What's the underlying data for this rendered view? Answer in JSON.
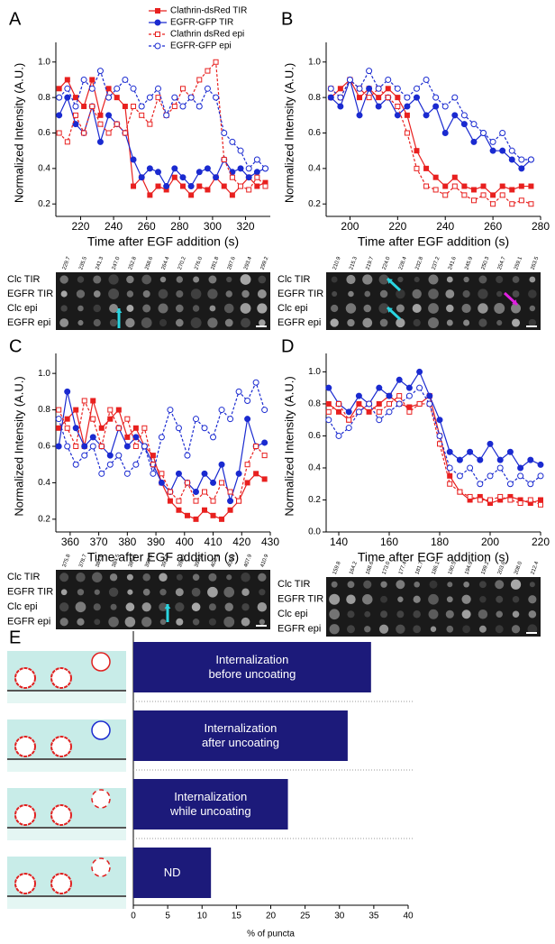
{
  "chart_data": [
    {
      "panel": "A",
      "type": "line",
      "xlabel": "Time after EGF addition (s)",
      "ylabel": "Normalized Intensity (A.U.)",
      "xlim": [
        205,
        335
      ],
      "xticks": [
        220,
        240,
        260,
        280,
        300,
        320
      ],
      "ylim": [
        0.13,
        1.07
      ],
      "yticks": [
        0.2,
        0.4,
        0.6,
        0.8,
        {
          "value": 1,
          "label": "1.0"
        }
      ],
      "legend": "top-right",
      "x": [
        207,
        212,
        217,
        222,
        227,
        232,
        237,
        242,
        247,
        252,
        257,
        262,
        267,
        272,
        277,
        282,
        287,
        292,
        297,
        302,
        307,
        312,
        317,
        322,
        327,
        332
      ],
      "series": [
        {
          "name": "Clathrin-dsRed TIR",
          "color": "#e8201f",
          "marker": "square",
          "filled": true,
          "dashed": false,
          "values": [
            0.85,
            0.9,
            0.8,
            0.75,
            0.9,
            0.7,
            0.85,
            0.8,
            0.75,
            0.3,
            0.35,
            0.25,
            0.3,
            0.28,
            0.35,
            0.3,
            0.25,
            0.3,
            0.28,
            0.35,
            0.3,
            0.25,
            0.3,
            0.35,
            0.3,
            0.32
          ]
        },
        {
          "name": "EGFR-GFP TIR",
          "color": "#1a2ad0",
          "marker": "circle",
          "filled": true,
          "dashed": false,
          "values": [
            0.7,
            0.8,
            0.65,
            0.6,
            0.75,
            0.55,
            0.7,
            0.65,
            0.6,
            0.45,
            0.35,
            0.4,
            0.38,
            0.3,
            0.4,
            0.35,
            0.3,
            0.38,
            0.4,
            0.35,
            0.45,
            0.38,
            0.4,
            0.35,
            0.38,
            0.4
          ]
        },
        {
          "name": "Clathrin dsRed epi",
          "color": "#e8201f",
          "marker": "square",
          "filled": false,
          "dashed": true,
          "values": [
            0.6,
            0.55,
            0.7,
            0.6,
            0.75,
            0.65,
            0.6,
            0.65,
            0.6,
            0.75,
            0.7,
            0.65,
            0.8,
            0.7,
            0.75,
            0.85,
            0.8,
            0.9,
            0.95,
            1.0,
            0.45,
            0.35,
            0.3,
            0.28,
            0.35,
            0.3
          ]
        },
        {
          "name": "EGFR-GFP epi",
          "color": "#1a2ad0",
          "marker": "circle",
          "filled": false,
          "dashed": true,
          "values": [
            0.8,
            0.85,
            0.75,
            0.9,
            0.85,
            0.95,
            0.8,
            0.85,
            0.9,
            0.85,
            0.75,
            0.8,
            0.85,
            0.7,
            0.8,
            0.75,
            0.8,
            0.75,
            0.85,
            0.8,
            0.6,
            0.55,
            0.5,
            0.4,
            0.45,
            0.4
          ]
        }
      ],
      "strip": {
        "rows": [
          "Clc TIR",
          "EGFR TIR",
          "Clc epi",
          "EGFR epi"
        ],
        "times": [
          "229.7",
          "235.5",
          "241.3",
          "247.0",
          "252.8",
          "258.6",
          "264.4",
          "270.2",
          "276.0",
          "281.8",
          "287.6",
          "293.4",
          "299.2"
        ]
      }
    },
    {
      "panel": "B",
      "type": "line",
      "xlabel": "Time after EGF addition (s)",
      "ylabel": "Normalized Intensity (A.U.)",
      "xlim": [
        190,
        280
      ],
      "xticks": [
        200,
        220,
        240,
        260,
        280
      ],
      "ylim": [
        0.13,
        1.07
      ],
      "yticks": [
        0.2,
        0.4,
        0.6,
        0.8,
        {
          "value": 1,
          "label": "1.0"
        }
      ],
      "x": [
        192,
        196,
        200,
        204,
        208,
        212,
        216,
        220,
        224,
        228,
        232,
        236,
        240,
        244,
        248,
        252,
        256,
        260,
        264,
        268,
        272,
        276
      ],
      "series": [
        {
          "color": "#e8201f",
          "marker": "square",
          "filled": true,
          "dashed": false,
          "values": [
            0.8,
            0.85,
            0.9,
            0.8,
            0.85,
            0.8,
            0.85,
            0.8,
            0.7,
            0.5,
            0.4,
            0.35,
            0.3,
            0.35,
            0.3,
            0.28,
            0.3,
            0.25,
            0.3,
            0.28,
            0.3,
            0.3
          ]
        },
        {
          "color": "#1a2ad0",
          "marker": "circle",
          "filled": true,
          "dashed": false,
          "values": [
            0.8,
            0.75,
            0.9,
            0.7,
            0.85,
            0.75,
            0.8,
            0.7,
            0.75,
            0.8,
            0.7,
            0.75,
            0.6,
            0.7,
            0.65,
            0.55,
            0.6,
            0.5,
            0.5,
            0.45,
            0.4,
            0.45
          ]
        },
        {
          "color": "#e8201f",
          "marker": "square",
          "filled": false,
          "dashed": true,
          "values": [
            0.85,
            0.8,
            0.9,
            0.85,
            0.8,
            0.85,
            0.8,
            0.75,
            0.6,
            0.4,
            0.3,
            0.28,
            0.25,
            0.3,
            0.25,
            0.22,
            0.25,
            0.2,
            0.25,
            0.2,
            0.22,
            0.2
          ]
        },
        {
          "color": "#1a2ad0",
          "marker": "circle",
          "filled": false,
          "dashed": true,
          "values": [
            0.85,
            0.8,
            0.9,
            0.85,
            0.95,
            0.85,
            0.9,
            0.85,
            0.8,
            0.85,
            0.9,
            0.8,
            0.75,
            0.8,
            0.7,
            0.65,
            0.6,
            0.55,
            0.6,
            0.5,
            0.45,
            0.45
          ]
        }
      ],
      "strip": {
        "rows": [
          "Clc TIR",
          "EGFR TIR",
          "Clc epi",
          "EGFR epi"
        ],
        "times": [
          "210.9",
          "215.3",
          "219.7",
          "224.0",
          "228.4",
          "232.8",
          "237.2",
          "241.6",
          "245.9",
          "250.3",
          "254.7",
          "259.1",
          "263.5"
        ]
      }
    },
    {
      "panel": "C",
      "type": "line",
      "xlabel": "Time after EGF addition (s)",
      "ylabel": "Normalized Intensity (A.U.)",
      "xlim": [
        355,
        430
      ],
      "xticks": [
        360,
        370,
        380,
        390,
        400,
        410,
        420,
        430
      ],
      "ylim": [
        0.13,
        1.07
      ],
      "yticks": [
        0.2,
        0.4,
        0.6,
        0.8,
        {
          "value": 1,
          "label": "1.0"
        }
      ],
      "x": [
        356,
        359,
        362,
        365,
        368,
        371,
        374,
        377,
        380,
        383,
        386,
        389,
        392,
        395,
        398,
        401,
        404,
        407,
        410,
        413,
        416,
        419,
        422,
        425,
        428
      ],
      "series": [
        {
          "color": "#e8201f",
          "marker": "square",
          "filled": true,
          "dashed": false,
          "values": [
            0.7,
            0.75,
            0.8,
            0.6,
            0.85,
            0.7,
            0.75,
            0.8,
            0.65,
            0.7,
            0.6,
            0.55,
            0.4,
            0.3,
            0.25,
            0.22,
            0.2,
            0.25,
            0.22,
            0.2,
            0.25,
            0.3,
            0.4,
            0.45,
            0.42
          ]
        },
        {
          "color": "#1a2ad0",
          "marker": "circle",
          "filled": true,
          "dashed": false,
          "values": [
            0.6,
            0.9,
            0.7,
            0.6,
            0.65,
            0.6,
            0.55,
            0.7,
            0.6,
            0.65,
            0.6,
            0.5,
            0.4,
            0.35,
            0.45,
            0.4,
            0.35,
            0.45,
            0.4,
            0.5,
            0.3,
            0.45,
            0.75,
            0.6,
            0.62
          ]
        },
        {
          "color": "#e8201f",
          "marker": "square",
          "filled": false,
          "dashed": true,
          "values": [
            0.8,
            0.7,
            0.6,
            0.85,
            0.75,
            0.6,
            0.8,
            0.7,
            0.75,
            0.6,
            0.7,
            0.5,
            0.45,
            0.35,
            0.3,
            0.4,
            0.3,
            0.35,
            0.3,
            0.4,
            0.35,
            0.3,
            0.5,
            0.6,
            0.55
          ]
        },
        {
          "color": "#1a2ad0",
          "marker": "circle",
          "filled": false,
          "dashed": true,
          "values": [
            0.75,
            0.6,
            0.5,
            0.55,
            0.6,
            0.45,
            0.5,
            0.55,
            0.45,
            0.5,
            0.6,
            0.45,
            0.65,
            0.8,
            0.7,
            0.55,
            0.75,
            0.7,
            0.65,
            0.8,
            0.75,
            0.9,
            0.85,
            0.95,
            0.8
          ]
        }
      ],
      "strip": {
        "rows": [
          "Clc TIR",
          "EGFR TIR",
          "Clc epi",
          "EGFR epi"
        ],
        "times": [
          "375.8",
          "378.7",
          "381.6",
          "384.5",
          "387.5",
          "390.4",
          "393.3",
          "396.2",
          "399.2",
          "402.1",
          "405.0",
          "407.9",
          "410.9"
        ]
      }
    },
    {
      "panel": "D",
      "type": "line",
      "xlabel": "Time after EGF addition (s)",
      "ylabel": "Normalized Intensity (A.U.)",
      "xlim": [
        135,
        220
      ],
      "xticks": [
        140,
        160,
        180,
        200,
        220
      ],
      "ylim": [
        0,
        1.07
      ],
      "yticks": [
        {
          "value": 0,
          "label": "0.0"
        },
        0.2,
        0.4,
        0.6,
        0.8,
        {
          "value": 1,
          "label": "1.0"
        }
      ],
      "x": [
        136,
        140,
        144,
        148,
        152,
        156,
        160,
        164,
        168,
        172,
        176,
        180,
        184,
        188,
        192,
        196,
        200,
        204,
        208,
        212,
        216,
        220
      ],
      "series": [
        {
          "color": "#e8201f",
          "marker": "square",
          "filled": true,
          "dashed": false,
          "values": [
            0.8,
            0.75,
            0.7,
            0.8,
            0.75,
            0.8,
            0.85,
            0.8,
            0.78,
            0.8,
            0.85,
            0.6,
            0.35,
            0.25,
            0.2,
            0.22,
            0.18,
            0.2,
            0.22,
            0.2,
            0.18,
            0.2
          ]
        },
        {
          "color": "#1a2ad0",
          "marker": "circle",
          "filled": true,
          "dashed": false,
          "values": [
            0.9,
            0.8,
            0.75,
            0.85,
            0.8,
            0.9,
            0.85,
            0.95,
            0.9,
            1.0,
            0.85,
            0.7,
            0.5,
            0.45,
            0.5,
            0.45,
            0.55,
            0.45,
            0.5,
            0.4,
            0.45,
            0.42
          ]
        },
        {
          "color": "#e8201f",
          "marker": "square",
          "filled": false,
          "dashed": true,
          "values": [
            0.75,
            0.8,
            0.7,
            0.75,
            0.8,
            0.75,
            0.8,
            0.85,
            0.75,
            0.8,
            0.8,
            0.55,
            0.3,
            0.25,
            0.22,
            0.2,
            0.2,
            0.22,
            0.2,
            0.18,
            0.2,
            0.17
          ]
        },
        {
          "color": "#1a2ad0",
          "marker": "circle",
          "filled": false,
          "dashed": true,
          "values": [
            0.7,
            0.6,
            0.65,
            0.75,
            0.8,
            0.7,
            0.75,
            0.8,
            0.85,
            0.9,
            0.8,
            0.6,
            0.4,
            0.35,
            0.4,
            0.3,
            0.35,
            0.4,
            0.3,
            0.35,
            0.3,
            0.35
          ]
        }
      ],
      "strip": {
        "rows": [
          "Clc TIR",
          "EGFR TIR",
          "Clc epi",
          "EGFR epi"
        ],
        "times": [
          "159.8",
          "164.2",
          "168.6",
          "173.0",
          "177.4",
          "181.7",
          "186.1",
          "190.5",
          "194.9",
          "199.2",
          "203.6",
          "208.0",
          "212.4"
        ]
      }
    },
    {
      "panel": "E",
      "type": "hbar",
      "xlabel": "% of puncta",
      "categories": [
        "Internalization\nbefore uncoating",
        "Internalization\nafter uncoating",
        "Internalization\nwhile uncoating",
        "ND"
      ],
      "values": [
        34.6,
        31.2,
        22.5,
        11.3
      ],
      "color": "#1c1a7a",
      "xlim": [
        0,
        40
      ],
      "xticks": [
        0,
        5,
        10,
        15,
        20,
        25,
        30,
        35,
        40
      ]
    }
  ]
}
